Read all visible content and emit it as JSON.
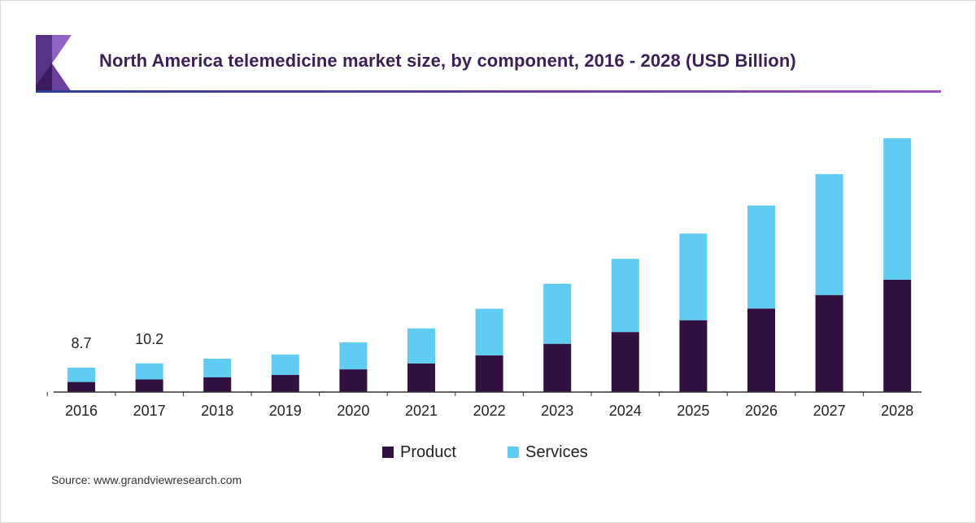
{
  "header": {
    "title": "North America telemedicine market size, by component, 2016 - 2028 (USD Billion)"
  },
  "source": {
    "prefix": "Source: ",
    "url": "www.grandviewresearch.com"
  },
  "colors": {
    "product": "#32103f",
    "services": "#5fcdf2",
    "axis": "#333333",
    "logo_dark": "#3a1c5c",
    "logo_mid": "#6a3fa0",
    "logo_light": "#8f63c4"
  },
  "chart_data": {
    "type": "bar",
    "stacked": true,
    "title": "North America telemedicine market size, by component, 2016 - 2028 (USD Billion)",
    "categories": [
      "2016",
      "2017",
      "2018",
      "2019",
      "2020",
      "2021",
      "2022",
      "2023",
      "2024",
      "2025",
      "2026",
      "2027",
      "2028"
    ],
    "series": [
      {
        "name": "Product",
        "color": "#32103f",
        "values": [
          3.6,
          4.5,
          5.3,
          6.1,
          8.1,
          10.2,
          13.1,
          17.2,
          21.4,
          25.6,
          29.8,
          34.6,
          40.1
        ]
      },
      {
        "name": "Services",
        "color": "#5fcdf2",
        "values": [
          5.1,
          5.7,
          6.6,
          7.3,
          9.6,
          12.5,
          16.6,
          21.4,
          26.1,
          30.9,
          36.7,
          43.1,
          50.4
        ]
      }
    ],
    "data_labels": [
      {
        "category": "2016",
        "text": "8.7"
      },
      {
        "category": "2017",
        "text": "10.2"
      }
    ],
    "ylim": [
      0,
      90.5
    ],
    "y_axis_visible": false,
    "grid": false,
    "legend": {
      "position": "bottom-center",
      "entries": [
        "Product",
        "Services"
      ]
    }
  }
}
